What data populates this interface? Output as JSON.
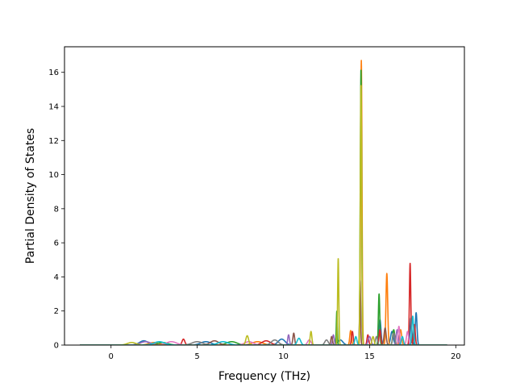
{
  "chart_data": {
    "type": "line",
    "title": "",
    "xlabel": "Frequency (THz)",
    "ylabel": "Partial Density of States",
    "xlim": [
      -2.7,
      20.5
    ],
    "ylim": [
      0,
      17.5
    ],
    "xticks": [
      0,
      5,
      10,
      15,
      20
    ],
    "yticks": [
      0,
      2,
      4,
      6,
      8,
      10,
      12,
      14,
      16
    ],
    "grid": false,
    "legend": "none",
    "x_range": [
      -1.8,
      19.5
    ],
    "series": [
      {
        "color": "#1f77b4",
        "peaks": [
          [
            1.9,
            0.25,
            0.25
          ],
          [
            5.5,
            0.2,
            0.3
          ],
          [
            9.9,
            0.35,
            0.2
          ],
          [
            13.3,
            0.3,
            0.15
          ],
          [
            15.6,
            1.5,
            0.06
          ],
          [
            16.3,
            0.8,
            0.08
          ],
          [
            17.4,
            1.6,
            0.05
          ],
          [
            17.7,
            1.9,
            0.05
          ]
        ]
      },
      {
        "color": "#ff7f0e",
        "peaks": [
          [
            2.5,
            0.15,
            0.3
          ],
          [
            8.5,
            0.2,
            0.3
          ],
          [
            13.9,
            0.85,
            0.05
          ],
          [
            14.52,
            16.7,
            0.04
          ],
          [
            16.0,
            4.2,
            0.05
          ],
          [
            16.8,
            0.9,
            0.06
          ]
        ]
      },
      {
        "color": "#2ca02c",
        "peaks": [
          [
            3.0,
            0.15,
            0.3
          ],
          [
            7.0,
            0.2,
            0.3
          ],
          [
            13.1,
            2.0,
            0.03
          ],
          [
            14.5,
            16.2,
            0.04
          ],
          [
            15.55,
            3.0,
            0.04
          ],
          [
            16.4,
            0.9,
            0.06
          ]
        ]
      },
      {
        "color": "#d62728",
        "peaks": [
          [
            4.2,
            0.35,
            0.08
          ],
          [
            9.0,
            0.25,
            0.25
          ],
          [
            14.0,
            0.8,
            0.05
          ],
          [
            14.9,
            0.6,
            0.05
          ],
          [
            15.6,
            0.9,
            0.05
          ],
          [
            17.35,
            4.8,
            0.04
          ],
          [
            17.6,
            1.2,
            0.05
          ]
        ]
      },
      {
        "color": "#9467bd",
        "peaks": [
          [
            2.0,
            0.2,
            0.3
          ],
          [
            10.3,
            0.6,
            0.05
          ],
          [
            12.9,
            0.6,
            0.05
          ],
          [
            15.0,
            0.5,
            0.08
          ],
          [
            16.6,
            0.9,
            0.06
          ]
        ]
      },
      {
        "color": "#8c564b",
        "peaks": [
          [
            6.0,
            0.25,
            0.25
          ],
          [
            10.6,
            0.7,
            0.05
          ],
          [
            12.8,
            0.5,
            0.05
          ],
          [
            14.45,
            3.8,
            0.03
          ],
          [
            15.9,
            1.0,
            0.06
          ]
        ]
      },
      {
        "color": "#e377c2",
        "peaks": [
          [
            3.5,
            0.2,
            0.3
          ],
          [
            8.0,
            0.2,
            0.25
          ],
          [
            11.5,
            0.3,
            0.1
          ],
          [
            16.7,
            1.1,
            0.05
          ],
          [
            17.2,
            0.8,
            0.06
          ]
        ]
      },
      {
        "color": "#7f7f7f",
        "peaks": [
          [
            5.0,
            0.2,
            0.3
          ],
          [
            9.5,
            0.3,
            0.2
          ],
          [
            12.5,
            0.3,
            0.1
          ],
          [
            15.4,
            0.5,
            0.06
          ],
          [
            16.4,
            0.7,
            0.06
          ]
        ]
      },
      {
        "color": "#bcbd22",
        "peaks": [
          [
            1.2,
            0.15,
            0.25
          ],
          [
            7.9,
            0.55,
            0.08
          ],
          [
            11.6,
            0.8,
            0.05
          ],
          [
            13.18,
            5.1,
            0.035
          ],
          [
            14.5,
            15.3,
            0.04
          ],
          [
            15.2,
            0.5,
            0.06
          ]
        ]
      },
      {
        "color": "#17becf",
        "peaks": [
          [
            2.8,
            0.2,
            0.3
          ],
          [
            6.5,
            0.2,
            0.3
          ],
          [
            10.9,
            0.4,
            0.1
          ],
          [
            14.2,
            0.5,
            0.06
          ],
          [
            16.9,
            0.5,
            0.06
          ],
          [
            17.5,
            1.7,
            0.05
          ]
        ]
      }
    ]
  }
}
